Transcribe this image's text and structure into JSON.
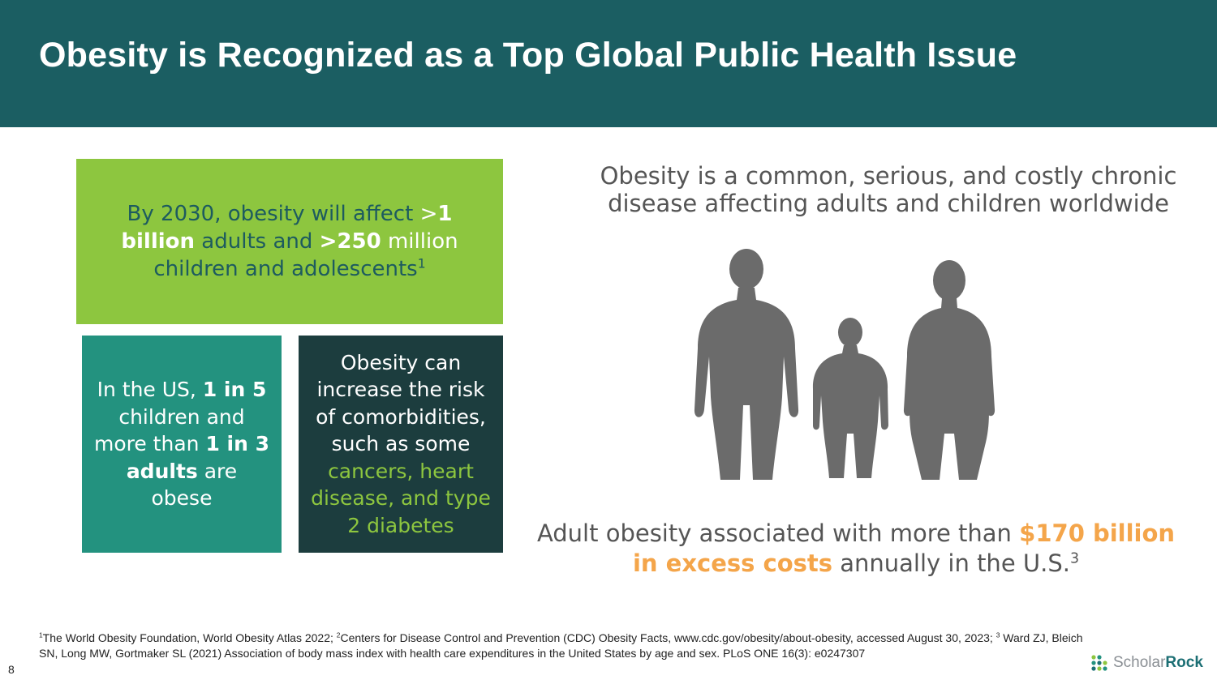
{
  "title": "Obesity is Recognized as a Top Global Public Health Issue",
  "box_green": {
    "t1": "By 2030, obesity will affect ",
    "t2": ">",
    "t3": "1 billion",
    "t4": " adults and ",
    "t5": ">250",
    "t6": " million",
    "t7": " children and adolescents",
    "sup": "1"
  },
  "box_teal": {
    "t1": "In the US, ",
    "t2": "1 in 5",
    "t3": " children and more than ",
    "t4": "1 in 3 adults",
    "t5": " are obese"
  },
  "box_dark": {
    "t1": "Obesity can increase the risk of comorbidities, such as some ",
    "t2": "cancers, heart disease, and type 2 diabetes"
  },
  "headline": "Obesity is a common, serious, and costly chronic disease affecting adults and children worldwide",
  "cost": {
    "t1": "Adult obesity associated with more than ",
    "t2": "$170 billion in excess costs",
    "t3": " annually in the U.S.",
    "sup": "3"
  },
  "footnotes": {
    "sup1": "1",
    "text1": "The World Obesity Foundation, World Obesity Atlas 2022; ",
    "sup2": "2",
    "text2": "Centers for Disease Control and Prevention (CDC) Obesity Facts, www.cdc.gov/obesity/about-obesity, accessed August 30, 2023; ",
    "sup3": "3",
    "text3": " Ward ZJ, Bleich SN, Long MW, Gortmaker SL (2021) Association of body mass index with health care expenditures in the United States by age and sex. PLoS ONE 16(3): e0247307"
  },
  "page_number": "8",
  "logo": {
    "part1": "Scholar",
    "part2": "Rock"
  },
  "colors": {
    "header": "#1b5e62",
    "green_box": "#8dc63f",
    "teal_box": "#23927f",
    "dark_box": "#1c3d3e",
    "highlight_orange": "#f4a54a",
    "silhouette": "#6b6b6b"
  },
  "icons": [
    "family-silhouette-icon",
    "scholar-rock-logo-icon"
  ]
}
